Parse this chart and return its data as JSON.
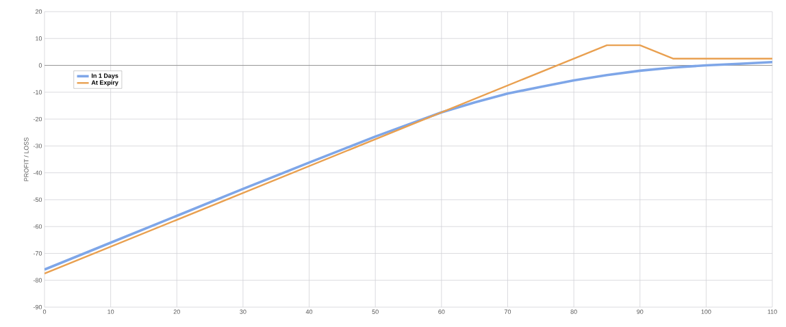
{
  "chart_data": {
    "type": "line",
    "ylabel": "PROFIT / LOSS",
    "x": [
      0,
      10,
      20,
      30,
      40,
      50,
      60,
      65,
      70,
      75,
      80,
      85,
      90,
      95,
      100,
      105,
      110
    ],
    "series": [
      {
        "name": "In 1 Days",
        "color": "#7ea6e8",
        "values": [
          -76,
          -66,
          -56,
          -46,
          -36.2,
          -26.5,
          -17.5,
          -13.8,
          -10.5,
          -8,
          -5.6,
          -3.6,
          -2,
          -0.8,
          0,
          0.6,
          1.2
        ]
      },
      {
        "name": "At Expiry",
        "color": "#e9a050",
        "x": [
          0,
          85,
          90,
          95,
          110
        ],
        "values": [
          -77.5,
          7.5,
          7.5,
          2.5,
          2.5
        ]
      }
    ],
    "xlim": [
      0,
      110
    ],
    "xticks": [
      0,
      10,
      20,
      30,
      40,
      50,
      60,
      70,
      80,
      90,
      100,
      110
    ],
    "ylim": [
      -90,
      20
    ],
    "yticks": [
      -90,
      -80,
      -70,
      -60,
      -50,
      -40,
      -30,
      -20,
      -10,
      0,
      10,
      20
    ],
    "ref_lines": [
      {
        "axis": "y",
        "value": 0,
        "color": "#999999"
      }
    ],
    "grid": true,
    "legend": "top left",
    "marker": "none",
    "line_style": "solid"
  }
}
